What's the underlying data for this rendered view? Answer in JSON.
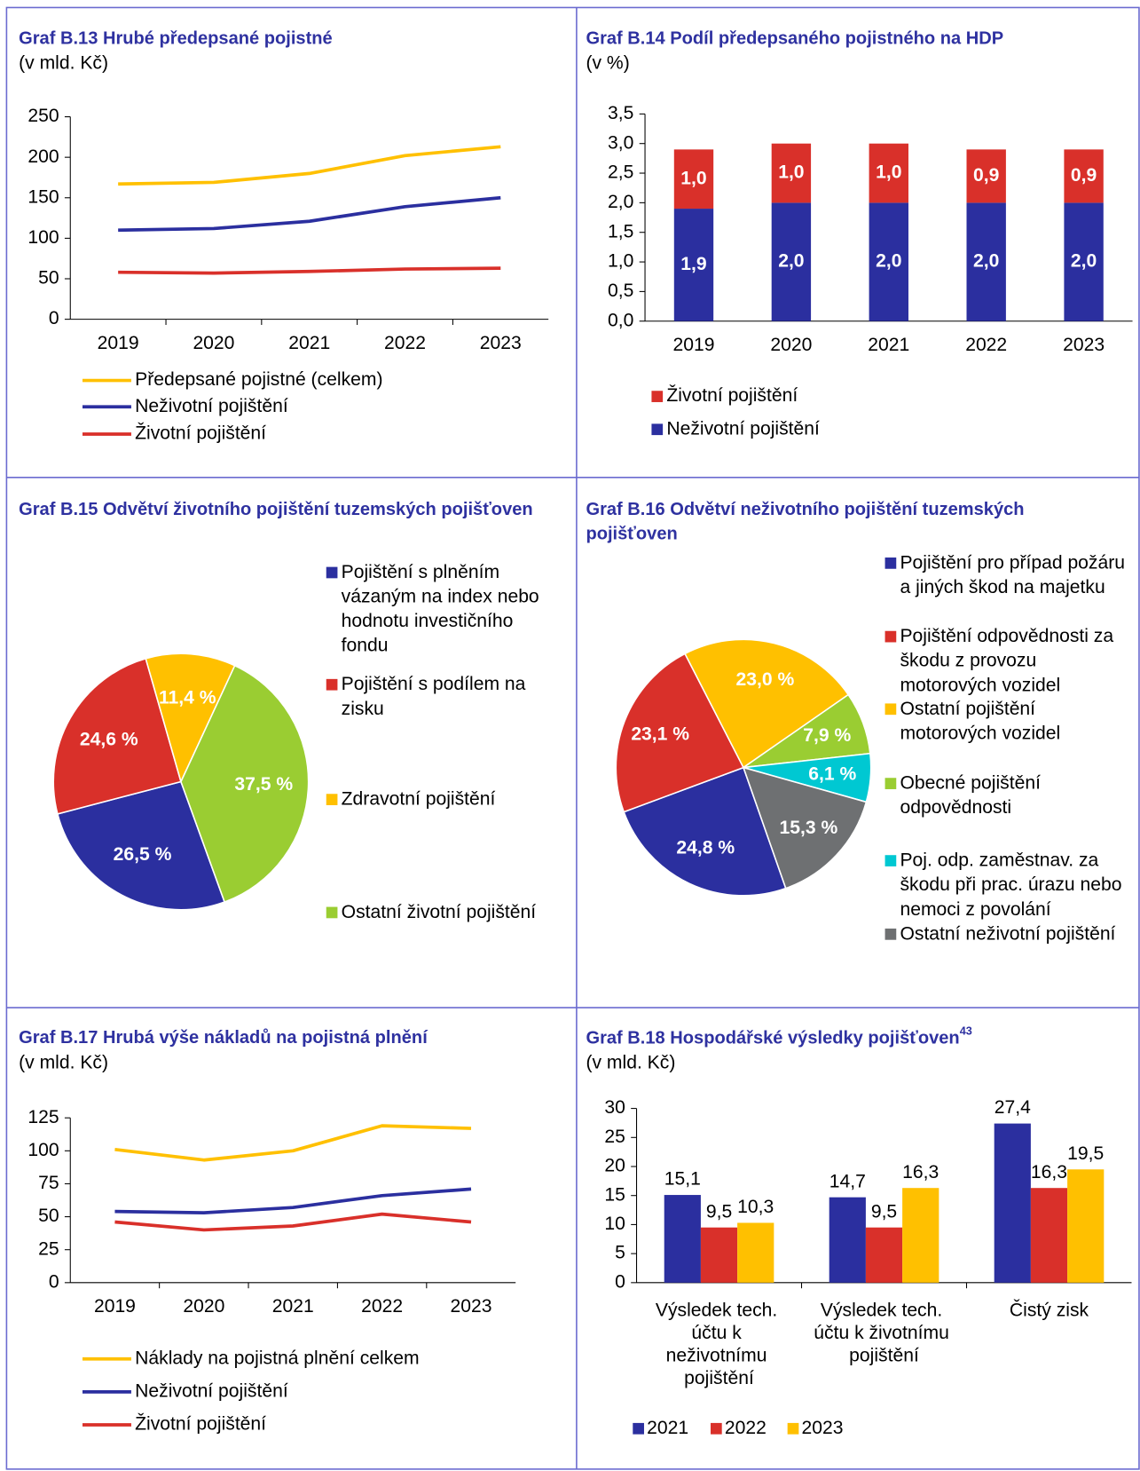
{
  "chart_data": [
    {
      "type": "line",
      "title": "Graf B.13 Hrubé předepsané pojistné",
      "subtitle": "(v mld. Kč)",
      "categories": [
        "2019",
        "2020",
        "2021",
        "2022",
        "2023"
      ],
      "series": [
        {
          "name": "Předepsané pojistné (celkem)",
          "color": "#ffc000",
          "values": [
            167,
            169,
            180,
            202,
            213
          ]
        },
        {
          "name": "Neživotní pojištění",
          "color": "#2b2f9f",
          "values": [
            110,
            112,
            121,
            139,
            150
          ]
        },
        {
          "name": "Životní pojištění",
          "color": "#d9302a",
          "values": [
            58,
            57,
            59,
            62,
            63
          ]
        }
      ],
      "ylim": [
        0,
        250
      ],
      "yticks": [
        0,
        50,
        100,
        150,
        200,
        250
      ]
    },
    {
      "type": "stacked_bar",
      "title": "Graf B.14 Podíl předepsaného pojistného na HDP",
      "subtitle": "(v %)",
      "categories": [
        "2019",
        "2020",
        "2021",
        "2022",
        "2023"
      ],
      "series": [
        {
          "name": "Životní pojištění",
          "color": "#d9302a",
          "values": [
            1.0,
            1.0,
            1.0,
            0.9,
            0.9
          ],
          "value_labels": [
            "1,0",
            "1,0",
            "1,0",
            "0,9",
            "0,9"
          ]
        },
        {
          "name": "Neživotní pojištění",
          "color": "#2b2f9f",
          "values": [
            1.9,
            2.0,
            2.0,
            2.0,
            2.0
          ],
          "value_labels": [
            "1,9",
            "2,0",
            "2,0",
            "2,0",
            "2,0"
          ]
        }
      ],
      "ylim": [
        0,
        3.5
      ],
      "yticks": [
        {
          "value": 0,
          "label": "0,0"
        },
        {
          "value": 0.5,
          "label": "0,5"
        },
        {
          "value": 1,
          "label": "1,0"
        },
        {
          "value": 1.5,
          "label": "1,5"
        },
        {
          "value": 2,
          "label": "2,0"
        },
        {
          "value": 2.5,
          "label": "2,5"
        },
        {
          "value": 3,
          "label": "3,0"
        },
        {
          "value": 3.5,
          "label": "3,5"
        }
      ]
    },
    {
      "type": "pie",
      "title": "Graf B.15 Odvětví životního pojištění tuzemských pojišťoven",
      "categories": [
        "Pojištění s plněním vázaným na index nebo hodnotu investičního fondu",
        "Pojištění s podílem na zisku",
        "Zdravotní pojištění",
        "Ostatní životní pojištění"
      ],
      "values": [
        26.5,
        24.6,
        11.4,
        37.5
      ],
      "value_labels": [
        "26,5 %",
        "24,6 %",
        "11,4 %",
        "37,5 %"
      ],
      "colors": [
        "#2b2f9f",
        "#d9302a",
        "#ffc000",
        "#9acd32"
      ]
    },
    {
      "type": "pie",
      "title": "Graf B.16 Odvětví neživotního pojištění tuzemských pojišťoven",
      "categories": [
        "Pojištění pro případ požáru a jiných škod na majetku",
        "Pojištění odpovědnosti za škodu z provozu motorových vozidel",
        "Ostatní pojištění motorových vozidel",
        "Obecné pojištění odpovědnosti",
        "Poj. odp. zaměstnav. za škodu při prac. úrazu nebo nemoci z povolání",
        "Ostatní neživotní pojištění"
      ],
      "values": [
        24.8,
        23.1,
        23.0,
        7.9,
        6.1,
        15.3
      ],
      "value_labels": [
        "24,8 %",
        "23,1 %",
        "23,0 %",
        "7,9 %",
        "6,1 %",
        "15,3 %"
      ],
      "colors": [
        "#2b2f9f",
        "#d9302a",
        "#ffc000",
        "#9acd32",
        "#00c8d2",
        "#6e7072"
      ]
    },
    {
      "type": "line",
      "title": "Graf B.17 Hrubá výše nákladů na pojistná plnění",
      "subtitle": "(v mld. Kč)",
      "categories": [
        "2019",
        "2020",
        "2021",
        "2022",
        "2023"
      ],
      "series": [
        {
          "name": "Náklady na pojistná plnění celkem",
          "color": "#ffc000",
          "values": [
            101,
            93,
            100,
            119,
            117
          ]
        },
        {
          "name": "Neživotní pojištění",
          "color": "#2b2f9f",
          "values": [
            54,
            53,
            57,
            66,
            71
          ]
        },
        {
          "name": "Životní pojištění",
          "color": "#d9302a",
          "values": [
            46,
            40,
            43,
            52,
            46
          ]
        }
      ],
      "ylim": [
        0,
        125
      ],
      "yticks": [
        0,
        25,
        50,
        75,
        100,
        125
      ]
    },
    {
      "type": "grouped_bar",
      "title": "Graf B.18 Hospodářské výsledky pojišťoven",
      "footnote_ref": "43",
      "subtitle": "(v mld. Kč)",
      "categories": [
        "Výsledek tech. účtu k neživotnímu pojištění",
        "Výsledek tech. účtu k životnímu pojištění",
        "Čistý zisk"
      ],
      "series": [
        {
          "name": "2021",
          "color": "#2b2f9f",
          "values": [
            15.1,
            14.7,
            27.4
          ],
          "value_labels": [
            "15,1",
            "14,7",
            "27,4"
          ]
        },
        {
          "name": "2022",
          "color": "#d9302a",
          "values": [
            9.5,
            9.5,
            16.3
          ],
          "value_labels": [
            "9,5",
            "9,5",
            "16,3"
          ]
        },
        {
          "name": "2023",
          "color": "#ffc000",
          "values": [
            10.3,
            16.3,
            19.5
          ],
          "value_labels": [
            "10,3",
            "16,3",
            "19,5"
          ]
        }
      ],
      "ylim": [
        0,
        30
      ],
      "yticks": [
        0,
        5,
        10,
        15,
        20,
        25,
        30
      ]
    }
  ]
}
